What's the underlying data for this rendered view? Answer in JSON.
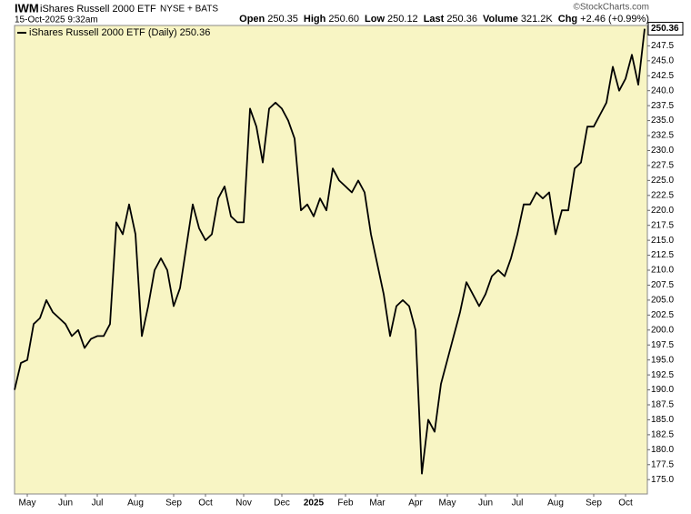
{
  "chart_data": {
    "type": "line",
    "symbol": "IWM",
    "title": "iShares Russell 2000 ETF",
    "exchange": "NYSE + BATS",
    "source": "©StockCharts.com",
    "timestamp": "15-Oct-2025 9:32am",
    "quote": [
      {
        "label": "Open",
        "value": "250.35"
      },
      {
        "label": "High",
        "value": "250.60"
      },
      {
        "label": "Low",
        "value": "250.12"
      },
      {
        "label": "Last",
        "value": "250.36"
      },
      {
        "label": "Volume",
        "value": "321.2K"
      },
      {
        "label": "Chg",
        "value": "+2.46 (+0.99%)"
      }
    ],
    "categories": [
      null,
      null,
      "May",
      null,
      null,
      null,
      null,
      null,
      "Jun",
      null,
      null,
      null,
      null,
      "Jul",
      null,
      null,
      null,
      null,
      null,
      "Aug",
      null,
      null,
      null,
      null,
      null,
      "Sep",
      null,
      null,
      null,
      null,
      "Oct",
      null,
      null,
      null,
      null,
      null,
      "Nov",
      null,
      null,
      null,
      null,
      null,
      "Dec",
      null,
      null,
      null,
      null,
      "2025",
      null,
      null,
      null,
      null,
      "Feb",
      null,
      null,
      null,
      null,
      "Mar",
      null,
      null,
      null,
      null,
      null,
      "Apr",
      null,
      null,
      null,
      null,
      "May",
      null,
      null,
      null,
      null,
      null,
      "Jun",
      null,
      null,
      null,
      null,
      "Jul",
      null,
      null,
      null,
      null,
      null,
      "Aug",
      null,
      null,
      null,
      null,
      null,
      "Sep",
      null,
      null,
      null,
      null,
      "Oct",
      null,
      null,
      null
    ],
    "series": [
      {
        "name": "iShares Russell 2000 ETF (Daily) 250.36",
        "color": "#000000",
        "values": [
          190,
          194.5,
          195,
          201,
          202,
          205,
          203,
          202,
          201,
          199,
          200,
          197,
          198.5,
          199,
          199,
          201,
          218,
          216,
          221,
          216,
          199,
          204,
          210,
          212,
          210,
          204,
          207,
          214,
          221,
          217,
          215,
          216,
          222,
          224,
          219,
          218,
          218,
          237,
          234,
          228,
          237,
          238,
          237,
          235,
          232,
          220,
          221,
          219,
          222,
          220,
          227,
          225,
          224,
          223,
          225,
          223,
          216,
          211,
          206,
          199,
          204,
          205,
          204,
          200,
          176,
          185,
          183,
          191,
          195,
          199,
          203,
          208,
          206,
          204,
          206,
          209,
          210,
          209,
          212,
          216,
          221,
          221,
          223,
          222,
          223,
          216,
          220,
          220,
          227,
          228,
          234,
          234,
          236,
          238,
          244,
          240,
          242,
          246,
          241,
          250.36
        ]
      }
    ],
    "ylim": [
      172.6,
      250.9
    ],
    "yticks": [
      {
        "value": 175,
        "label": "175.0"
      },
      {
        "value": 177.5,
        "label": "177.5"
      },
      {
        "value": 180,
        "label": "180.0"
      },
      {
        "value": 182.5,
        "label": "182.5"
      },
      {
        "value": 185,
        "label": "185.0"
      },
      {
        "value": 187.5,
        "label": "187.5"
      },
      {
        "value": 190,
        "label": "190.0"
      },
      {
        "value": 192.5,
        "label": "192.5"
      },
      {
        "value": 195,
        "label": "195.0"
      },
      {
        "value": 197.5,
        "label": "197.5"
      },
      {
        "value": 200,
        "label": "200.0"
      },
      {
        "value": 202.5,
        "label": "202.5"
      },
      {
        "value": 205,
        "label": "205.0"
      },
      {
        "value": 207.5,
        "label": "207.5"
      },
      {
        "value": 210,
        "label": "210.0"
      },
      {
        "value": 212.5,
        "label": "212.5"
      },
      {
        "value": 215,
        "label": "215.0"
      },
      {
        "value": 217.5,
        "label": "217.5"
      },
      {
        "value": 220,
        "label": "220.0"
      },
      {
        "value": 222.5,
        "label": "222.5"
      },
      {
        "value": 225,
        "label": "225.0"
      },
      {
        "value": 227.5,
        "label": "227.5"
      },
      {
        "value": 230,
        "label": "230.0"
      },
      {
        "value": 232.5,
        "label": "232.5"
      },
      {
        "value": 235,
        "label": "235.0"
      },
      {
        "value": 237.5,
        "label": "237.5"
      },
      {
        "value": 240,
        "label": "240.0"
      },
      {
        "value": 242.5,
        "label": "242.5"
      },
      {
        "value": 245,
        "label": "245.0"
      },
      {
        "value": 247.5,
        "label": "247.5"
      }
    ],
    "grid": false,
    "background": "#f8f5c4"
  }
}
